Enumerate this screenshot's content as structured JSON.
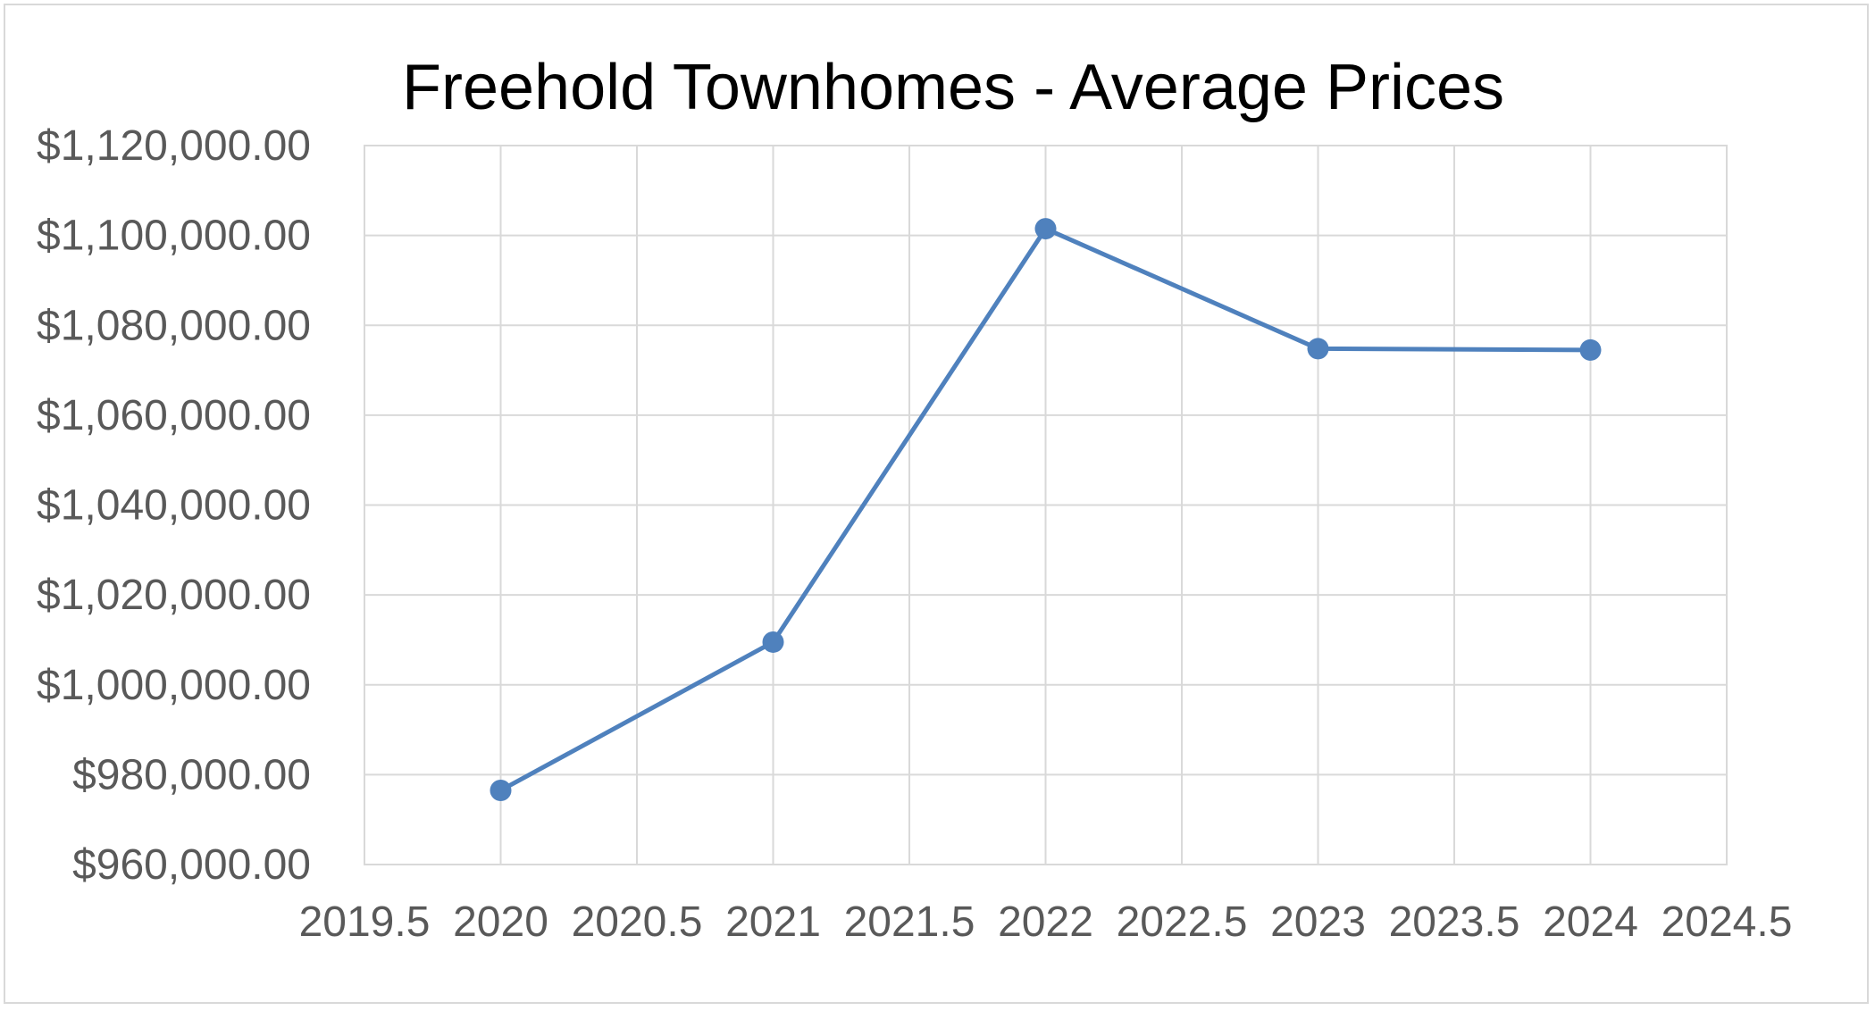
{
  "chart_data": {
    "type": "scatter",
    "mode": "lines+markers",
    "title": "Freehold Townhomes - Average Prices",
    "xlabel": "",
    "ylabel": "",
    "x": [
      2020,
      2021,
      2022,
      2023,
      2024
    ],
    "series": [
      {
        "values": [
          976500,
          1009500,
          1101500,
          1074800,
          1074500
        ],
        "color": "#4f81bd"
      }
    ],
    "xlim": [
      2019.5,
      2024.5
    ],
    "ylim": [
      960000,
      1120000
    ],
    "x_ticks": [
      2019.5,
      2020,
      2020.5,
      2021,
      2021.5,
      2022,
      2022.5,
      2023,
      2023.5,
      2024,
      2024.5
    ],
    "x_tick_labels": [
      "2019.5",
      "2020",
      "2020.5",
      "2021",
      "2021.5",
      "2022",
      "2022.5",
      "2023",
      "2023.5",
      "2024",
      "2024.5"
    ],
    "y_ticks": [
      960000,
      980000,
      1000000,
      1020000,
      1040000,
      1060000,
      1080000,
      1100000,
      1120000
    ],
    "y_tick_labels": [
      "$960,000.00",
      "$980,000.00",
      "$1,000,000.00",
      "$1,020,000.00",
      "$1,040,000.00",
      "$1,060,000.00",
      "$1,080,000.00",
      "$1,100,000.00",
      "$1,120,000.00"
    ],
    "grid": true,
    "legend": "none"
  }
}
